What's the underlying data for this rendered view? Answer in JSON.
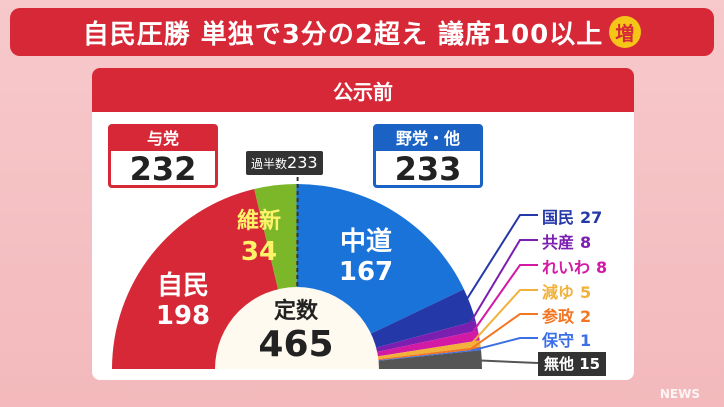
{
  "headline": {
    "text": "自民圧勝  単独で3分の2超え  議席100以上",
    "badge": "増"
  },
  "section": {
    "title": "公示前"
  },
  "ruling": {
    "label": "与党",
    "seats": "232"
  },
  "opposition": {
    "label": "野党・他",
    "seats": "233"
  },
  "majority": {
    "label": "過半数",
    "value": "233"
  },
  "total": {
    "label": "定数",
    "value": "465"
  },
  "chart_data": {
    "type": "pie",
    "shape": "semicircle",
    "total": 465,
    "segments": [
      {
        "name": "自民",
        "value": 198,
        "color": "#d62837"
      },
      {
        "name": "維新",
        "value": 34,
        "color": "#7cb72a"
      },
      {
        "name": "中道",
        "value": 167,
        "color": "#1a73d9"
      },
      {
        "name": "国民",
        "value": 27,
        "color": "#2438a8"
      },
      {
        "name": "共産",
        "value": 8,
        "color": "#7a1fb0"
      },
      {
        "name": "れいわ",
        "value": 8,
        "color": "#d21aa5"
      },
      {
        "name": "減ゆ",
        "value": 5,
        "color": "#f1b13a"
      },
      {
        "name": "参政",
        "value": 2,
        "color": "#f27622"
      },
      {
        "name": "保守",
        "value": 1,
        "color": "#3c6fe6"
      },
      {
        "name": "無他",
        "value": 15,
        "color": "#555555"
      }
    ]
  },
  "labels": {
    "jimin": {
      "name": "自民",
      "value": "198"
    },
    "ishin": {
      "name": "維新",
      "value": "34"
    },
    "chudo": {
      "name": "中道",
      "value": "167"
    }
  },
  "legend": [
    {
      "name": "国民",
      "value": "27",
      "color": "#2438a8"
    },
    {
      "name": "共産",
      "value": "8",
      "color": "#7a1fb0"
    },
    {
      "name": "れいわ",
      "value": "8",
      "color": "#d21aa5"
    },
    {
      "name": "減ゆ",
      "value": "5",
      "color": "#f1b13a"
    },
    {
      "name": "参政",
      "value": "2",
      "color": "#f27622"
    },
    {
      "name": "保守",
      "value": "1",
      "color": "#3c6fe6"
    }
  ],
  "other": {
    "name": "無他",
    "value": "15"
  },
  "watermark": "NEWS"
}
